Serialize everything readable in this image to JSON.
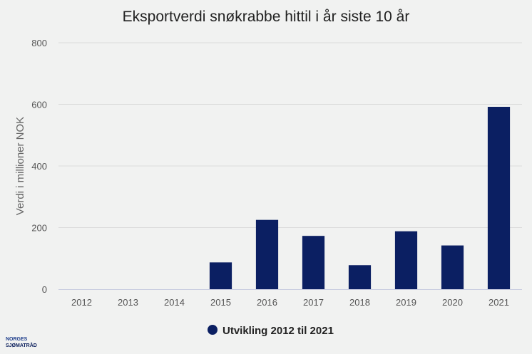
{
  "logo": {
    "line1": "NORGES",
    "line2": "SJØMATRÅD"
  },
  "colors": {
    "bar": "#0b1f62",
    "grid": "#dcdcdc",
    "axis": "#c9cde0",
    "background": "#f1f2f1"
  },
  "chart_data": {
    "type": "bar",
    "title": "Eksportverdi snøkrabbe hittil i år siste 10 år",
    "xlabel": "",
    "ylabel": "Verdi i millioner NOK",
    "categories": [
      "2012",
      "2013",
      "2014",
      "2015",
      "2016",
      "2017",
      "2018",
      "2019",
      "2020",
      "2021"
    ],
    "series": [
      {
        "name": "Utvikling 2012 til 2021",
        "values": [
          0,
          0,
          0,
          87,
          225,
          173,
          78,
          188,
          142,
          592
        ]
      }
    ],
    "ylim": [
      0,
      800
    ],
    "yticks": [
      "0",
      "200",
      "400",
      "600",
      "800"
    ],
    "grid": true,
    "legend_position": "bottom-center"
  }
}
